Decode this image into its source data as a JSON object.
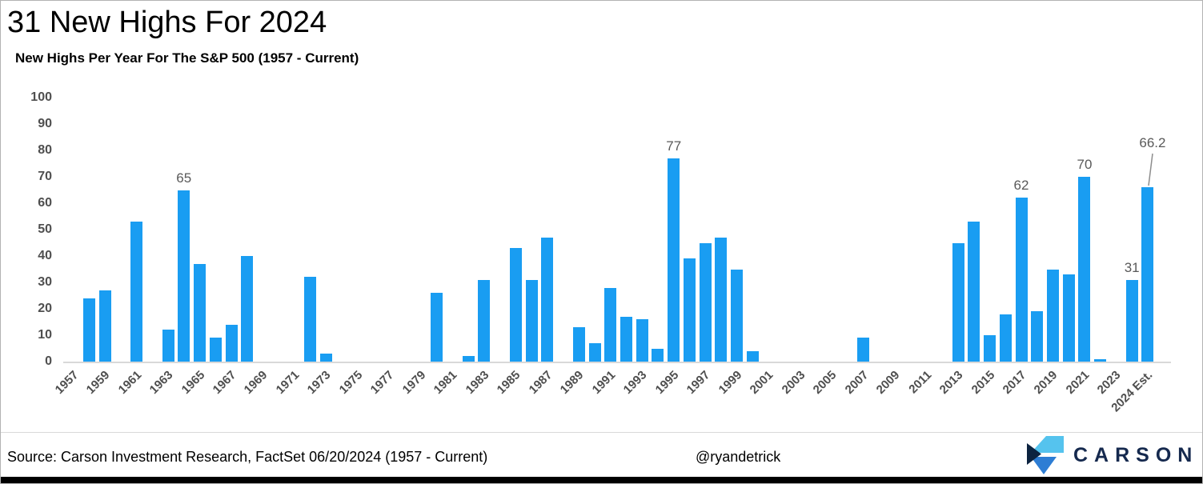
{
  "header": {
    "title": "31 New Highs For 2024",
    "subtitle": "New Highs Per Year For The S&P 500 (1957 - Current)"
  },
  "chart_data": {
    "type": "bar",
    "title": "New Highs Per Year For The S&P 500 (1957 - Current)",
    "xlabel": "",
    "ylabel": "",
    "ylim": [
      0,
      100
    ],
    "grid": false,
    "legend": "none",
    "categories": [
      "1957",
      "1958",
      "1959",
      "1960",
      "1961",
      "1962",
      "1963",
      "1964",
      "1965",
      "1966",
      "1967",
      "1968",
      "1969",
      "1970",
      "1971",
      "1972",
      "1973",
      "1974",
      "1975",
      "1976",
      "1977",
      "1978",
      "1979",
      "1980",
      "1981",
      "1982",
      "1983",
      "1984",
      "1985",
      "1986",
      "1987",
      "1988",
      "1989",
      "1990",
      "1991",
      "1992",
      "1993",
      "1994",
      "1995",
      "1996",
      "1997",
      "1998",
      "1999",
      "2000",
      "2001",
      "2002",
      "2003",
      "2004",
      "2005",
      "2006",
      "2007",
      "2008",
      "2009",
      "2010",
      "2011",
      "2012",
      "2013",
      "2014",
      "2015",
      "2016",
      "2017",
      "2018",
      "2019",
      "2020",
      "2021",
      "2022",
      "2023",
      "2024",
      "2024 Est."
    ],
    "values": [
      0,
      24,
      27,
      0,
      53,
      0,
      12,
      65,
      37,
      9,
      14,
      40,
      0,
      0,
      0,
      32,
      3,
      0,
      0,
      0,
      0,
      0,
      0,
      26,
      0,
      2,
      31,
      0,
      43,
      31,
      47,
      0,
      13,
      7,
      28,
      17,
      16,
      5,
      77,
      39,
      45,
      47,
      35,
      4,
      0,
      0,
      0,
      0,
      0,
      0,
      9,
      0,
      0,
      0,
      0,
      0,
      45,
      53,
      10,
      18,
      62,
      19,
      35,
      33,
      70,
      1,
      0,
      31,
      66.2
    ],
    "bar_labels": {
      "1964": "65",
      "1995": "77",
      "2017": "62",
      "2021": "70",
      "2024": "31",
      "2024 Est.": "66.2"
    },
    "x_tick_labels": [
      "1957",
      "1959",
      "1961",
      "1963",
      "1965",
      "1967",
      "1969",
      "1971",
      "1973",
      "1975",
      "1977",
      "1979",
      "1981",
      "1983",
      "1985",
      "1987",
      "1989",
      "1991",
      "1993",
      "1995",
      "1997",
      "1999",
      "2001",
      "2003",
      "2005",
      "2007",
      "2009",
      "2011",
      "2013",
      "2015",
      "2017",
      "2019",
      "2021",
      "2023",
      "2024 Est."
    ],
    "y_ticks": [
      0,
      10,
      20,
      30,
      40,
      50,
      60,
      70,
      80,
      90,
      100
    ],
    "bar_color": "#199df2",
    "axis_label_color": "#4f4f4f",
    "data_label_color": "#595959",
    "baseline_color": "#d9d9d9",
    "callout_color": "#8c8c8c"
  },
  "footer": {
    "source": "Source: Carson Investment Research, FactSet 06/20/2024 (1957 - Current)",
    "handle": "@ryandetrick",
    "brand": "CARSON",
    "logo_colors": {
      "cyan": "#55c3ee",
      "blue": "#2d7dd4",
      "navy": "#0c2340",
      "text": "#15294e"
    }
  }
}
